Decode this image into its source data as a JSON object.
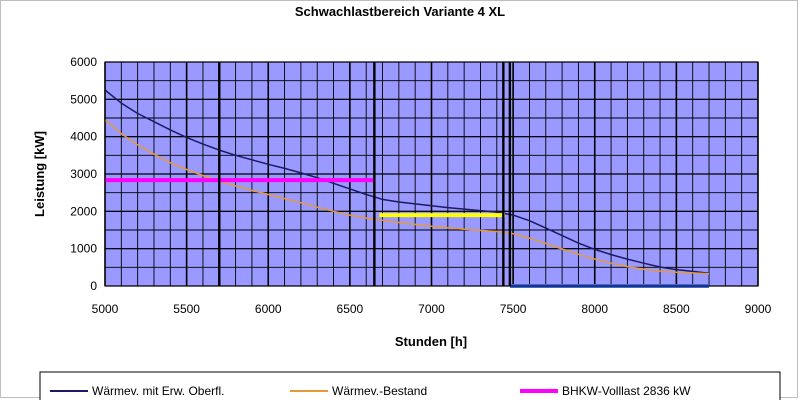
{
  "chart_data": {
    "type": "line",
    "title": "Schwachlastbereich Variante 4 XL",
    "xlabel": "Stunden [h]",
    "ylabel": "Leistung [kW]",
    "xlim": [
      5000,
      9000
    ],
    "ylim": [
      0,
      6000
    ],
    "xticks": [
      5000,
      5500,
      6000,
      6500,
      7000,
      7500,
      8000,
      8500,
      9000
    ],
    "yticks": [
      0,
      1000,
      2000,
      3000,
      4000,
      5000,
      6000
    ],
    "grid": true,
    "plot_background": "#9999ff",
    "legend_position": "bottom",
    "series": [
      {
        "name": "Wärmev. mit Erw. Oberfl.",
        "color": "#1a1a66",
        "x": [
          5000,
          5100,
          5200,
          5300,
          5400,
          5500,
          5600,
          5700,
          5800,
          5900,
          6000,
          6100,
          6200,
          6300,
          6400,
          6500,
          6600,
          6700,
          6800,
          6900,
          7000,
          7100,
          7200,
          7300,
          7400,
          7500,
          7600,
          7700,
          7800,
          7900,
          8000,
          8100,
          8200,
          8300,
          8400,
          8500,
          8600,
          8700
        ],
        "y": [
          5250,
          4900,
          4620,
          4400,
          4180,
          3980,
          3800,
          3640,
          3500,
          3380,
          3260,
          3150,
          3030,
          2900,
          2750,
          2600,
          2450,
          2320,
          2250,
          2200,
          2150,
          2100,
          2060,
          2020,
          1980,
          1900,
          1750,
          1550,
          1350,
          1150,
          980,
          840,
          720,
          610,
          510,
          440,
          390,
          340
        ]
      },
      {
        "name": "Wärmev.-Bestand",
        "color": "#e39a3c",
        "x": [
          5000,
          5100,
          5200,
          5300,
          5400,
          5500,
          5600,
          5700,
          5800,
          5900,
          6000,
          6100,
          6200,
          6300,
          6400,
          6500,
          6600,
          6700,
          6800,
          6900,
          7000,
          7100,
          7200,
          7300,
          7400,
          7500,
          7600,
          7700,
          7800,
          7900,
          8000,
          8100,
          8200,
          8300,
          8400,
          8500,
          8600,
          8700
        ],
        "y": [
          4450,
          4080,
          3780,
          3530,
          3300,
          3120,
          2960,
          2810,
          2680,
          2560,
          2450,
          2340,
          2230,
          2110,
          2000,
          1900,
          1820,
          1760,
          1700,
          1650,
          1600,
          1560,
          1520,
          1490,
          1460,
          1400,
          1280,
          1140,
          990,
          850,
          720,
          610,
          520,
          450,
          400,
          370,
          350,
          330
        ]
      },
      {
        "name": "BHKW-Volllast 2836 kW",
        "color": "#ff00ff",
        "x": [
          5000,
          6650
        ],
        "y": [
          2836,
          2836
        ]
      },
      {
        "name": "",
        "color": "#ffff00",
        "x": [
          6680,
          7450
        ],
        "y": [
          1900,
          1900
        ]
      },
      {
        "name": "",
        "color": "#4169e1",
        "x": [
          7480,
          8700
        ],
        "y": [
          0,
          0
        ]
      }
    ],
    "vertical_lines": [
      5700,
      6650,
      7440,
      7480
    ]
  }
}
